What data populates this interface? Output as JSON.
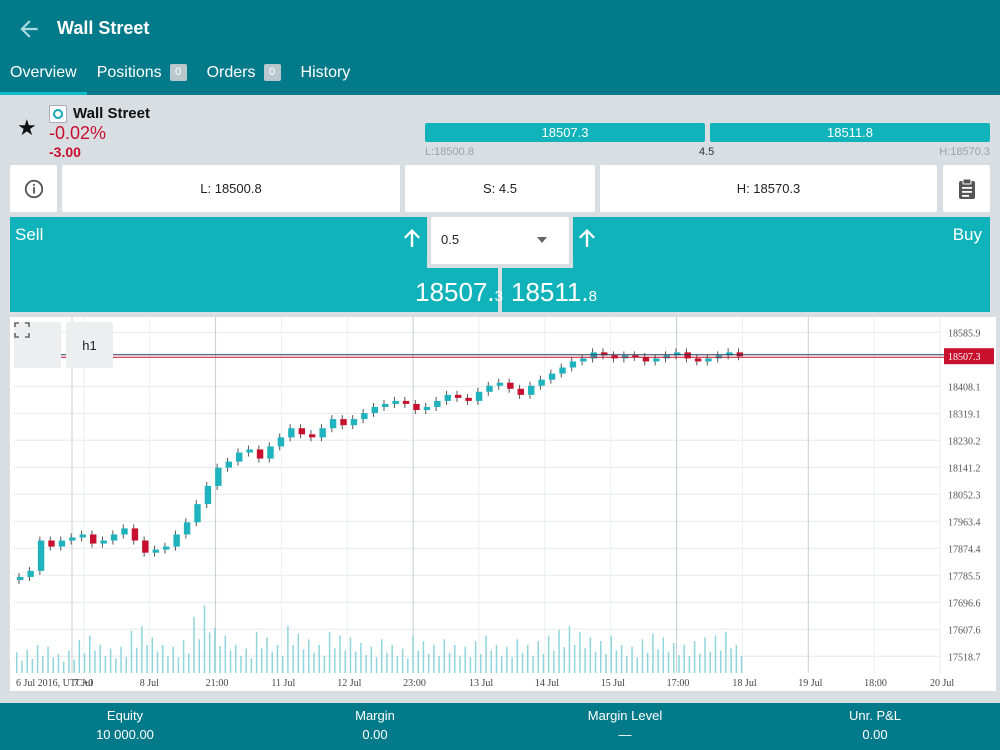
{
  "header": {
    "title": "Wall Street",
    "back_icon": "back-arrow-icon"
  },
  "tabs": [
    {
      "label": "Overview",
      "count": null,
      "active": true
    },
    {
      "label": "Positions",
      "count": "0"
    },
    {
      "label": "Orders",
      "count": "0"
    },
    {
      "label": "History",
      "count": null
    }
  ],
  "instrument": {
    "name": "Wall Street",
    "change_pct": "-0.02%",
    "change_abs": "-3.00",
    "sell_bar": "18507.3",
    "buy_bar": "18511.8",
    "low_small": "L:18500.8",
    "spread_small": "4.5",
    "high_small": "H:18570.3"
  },
  "stats": {
    "low": "L: 18500.8",
    "spread": "S: 4.5",
    "high": "H: 18570.3"
  },
  "trade": {
    "sell_label": "Sell",
    "buy_label": "Buy",
    "quantity": "0.5",
    "sell_price_main": "18507.",
    "sell_price_small": "3",
    "buy_price_main": "18511.",
    "buy_price_small": "8"
  },
  "chart_controls": {
    "interval": "h1"
  },
  "chart_data": {
    "type": "candlestick",
    "interval": "h1",
    "y_ticks": [
      "18585.9",
      "18408.1",
      "18319.1",
      "18230.2",
      "18141.2",
      "18052.3",
      "17963.4",
      "17874.4",
      "17785.5",
      "17696.6",
      "17607.6",
      "17518.7"
    ],
    "ylim": [
      17480,
      18620
    ],
    "x_ticks": [
      "6 Jul 2016, UTC+0",
      "7 Jul",
      "8 Jul",
      "21:00",
      "11 Jul",
      "12 Jul",
      "23:00",
      "13 Jul",
      "14 Jul",
      "15 Jul",
      "17:00",
      "18 Jul",
      "19 Jul",
      "18:00",
      "20 Jul"
    ],
    "current_price_label": "18507.3",
    "current_price": 18507.3,
    "candle_close": [
      17780,
      17800,
      17900,
      17880,
      17900,
      17910,
      17920,
      17890,
      17900,
      17920,
      17940,
      17900,
      17860,
      17870,
      17880,
      17920,
      17960,
      18020,
      18080,
      18140,
      18160,
      18190,
      18200,
      18170,
      18210,
      18240,
      18270,
      18250,
      18240,
      18270,
      18300,
      18280,
      18300,
      18320,
      18340,
      18350,
      18360,
      18350,
      18330,
      18340,
      18360,
      18380,
      18370,
      18360,
      18390,
      18410,
      18420,
      18400,
      18380,
      18410,
      18430,
      18450,
      18470,
      18490,
      18500,
      18520,
      18510,
      18500,
      18510,
      18505,
      18490,
      18500,
      18510,
      18520,
      18500,
      18490,
      18500,
      18510,
      18520,
      18507
    ],
    "volume": [
      22,
      25,
      30,
      28,
      20,
      24,
      35,
      40,
      30,
      26,
      28,
      45,
      50,
      38,
      30,
      28,
      35,
      60,
      72,
      48,
      40,
      30,
      26,
      44,
      38,
      30,
      50,
      42,
      36,
      30,
      44,
      40,
      38,
      32,
      28,
      36,
      30,
      26,
      40,
      34,
      30,
      36,
      30,
      28,
      34,
      40,
      30,
      28,
      36,
      30,
      34,
      40,
      46,
      50,
      44,
      38,
      34,
      40,
      30,
      28,
      36,
      42,
      38,
      32,
      30,
      34,
      38,
      40,
      44,
      30
    ]
  },
  "footer": [
    {
      "label": "Equity",
      "value": "10 000.00"
    },
    {
      "label": "Margin",
      "value": "0.00"
    },
    {
      "label": "Margin Level",
      "value": "—"
    },
    {
      "label": "Unr. P&L",
      "value": "0.00"
    }
  ]
}
